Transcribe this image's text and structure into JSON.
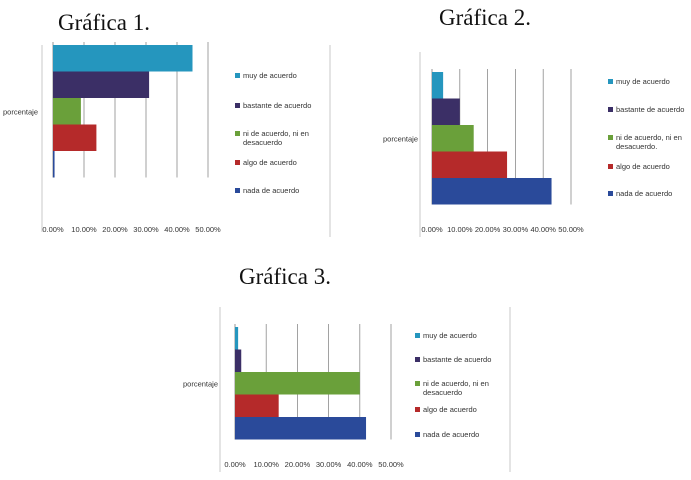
{
  "titles": [
    "Gráfica 1.",
    "Gráfica 2.",
    "Gráfica 3."
  ],
  "chart_data": [
    {
      "type": "bar",
      "orientation": "horizontal",
      "category": "porcentaje",
      "xlim": [
        0,
        50
      ],
      "xticks": [
        "0.00%",
        "10.00%",
        "20.00%",
        "30.00%",
        "40.00%",
        "50.00%"
      ],
      "series": [
        {
          "name": "muy de acuerdo",
          "value": 45,
          "color": "#2596be"
        },
        {
          "name": "bastante de acuerdo",
          "value": 31,
          "color": "#3b2f66"
        },
        {
          "name": "ni de acuerdo, ni en desacuerdo",
          "value": 9,
          "color": "#6aa03a"
        },
        {
          "name": "algo de acuerdo",
          "value": 14,
          "color": "#b52a2a"
        },
        {
          "name": "nada de acuerdo",
          "value": 0.5,
          "color": "#2a4a9a"
        }
      ],
      "legend": "right"
    },
    {
      "type": "bar",
      "orientation": "horizontal",
      "category": "porcentaje",
      "xlim": [
        0,
        50
      ],
      "xticks": [
        "0.00%",
        "10.00%",
        "20.00%",
        "30.00%",
        "40.00%",
        "50.00%"
      ],
      "series": [
        {
          "name": "muy de acuerdo",
          "value": 4,
          "color": "#2596be"
        },
        {
          "name": "bastante de acuerdo",
          "value": 10,
          "color": "#3b2f66"
        },
        {
          "name": "ni de acuerdo, ni en desacuerdo.",
          "value": 15,
          "color": "#6aa03a"
        },
        {
          "name": "algo de acuerdo",
          "value": 27,
          "color": "#b52a2a"
        },
        {
          "name": "nada de acuerdo",
          "value": 43,
          "color": "#2a4a9a"
        }
      ],
      "legend": "right"
    },
    {
      "type": "bar",
      "orientation": "horizontal",
      "category": "porcentaje",
      "xlim": [
        0,
        50
      ],
      "xticks": [
        "0.00%",
        "10.00%",
        "20.00%",
        "30.00%",
        "40.00%",
        "50.00%"
      ],
      "series": [
        {
          "name": "muy de acuerdo",
          "value": 1,
          "color": "#2596be"
        },
        {
          "name": "bastante de acuerdo",
          "value": 2,
          "color": "#3b2f66"
        },
        {
          "name": "ni de acuerdo, ni en desacuerdo",
          "value": 40,
          "color": "#6aa03a"
        },
        {
          "name": "algo de acuerdo",
          "value": 14,
          "color": "#b52a2a"
        },
        {
          "name": "nada de acuerdo",
          "value": 42,
          "color": "#2a4a9a"
        }
      ],
      "legend": "right"
    }
  ]
}
